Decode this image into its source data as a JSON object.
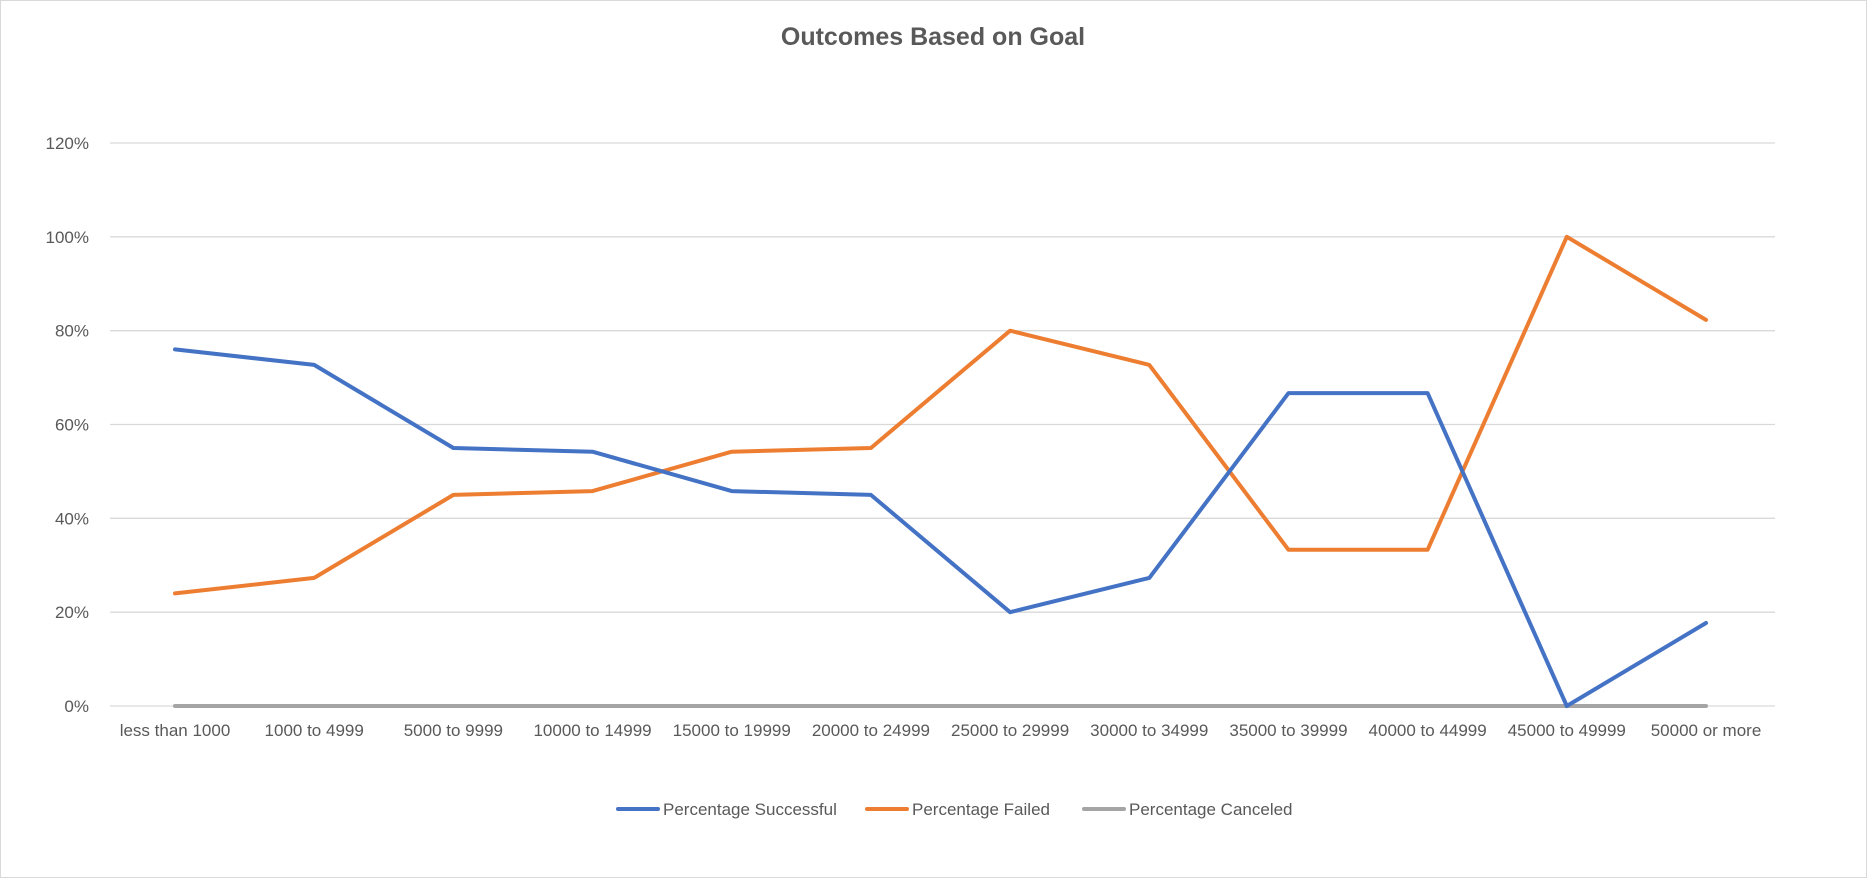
{
  "chart_data": {
    "type": "line",
    "title": "Outcomes Based on Goal",
    "xlabel": "",
    "ylabel": "",
    "categories": [
      "less than 1000",
      "1000 to 4999",
      "5000 to 9999",
      "10000 to 14999",
      "15000 to 19999",
      "20000 to 24999",
      "25000 to 29999",
      "30000 to 34999",
      "35000 to 39999",
      "40000 to 44999",
      "45000 to 49999",
      "50000 or more"
    ],
    "ylim": [
      0,
      1.2
    ],
    "yticks": [
      0,
      0.2,
      0.4,
      0.6,
      0.8,
      1.0,
      1.2
    ],
    "ytick_labels": [
      "0%",
      "20%",
      "40%",
      "60%",
      "80%",
      "100%",
      "120%"
    ],
    "grid": true,
    "legend": "bottom",
    "series": [
      {
        "name": "Percentage Successful",
        "color": "#4472c4",
        "values": [
          0.76,
          0.727,
          0.55,
          0.542,
          0.458,
          0.45,
          0.2,
          0.273,
          0.667,
          0.667,
          0.0,
          0.177
        ]
      },
      {
        "name": "Percentage Failed",
        "color": "#ed7d31",
        "values": [
          0.24,
          0.273,
          0.45,
          0.458,
          0.542,
          0.55,
          0.8,
          0.727,
          0.333,
          0.333,
          1.0,
          0.823
        ]
      },
      {
        "name": "Percentage Canceled",
        "color": "#a5a5a5",
        "values": [
          0,
          0,
          0,
          0,
          0,
          0,
          0,
          0,
          0,
          0,
          0,
          0
        ]
      }
    ]
  }
}
